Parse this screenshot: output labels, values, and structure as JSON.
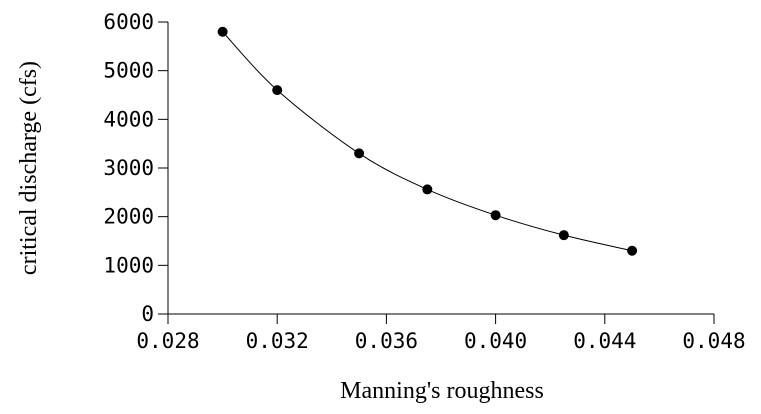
{
  "chart_data": {
    "type": "line",
    "title": "",
    "xlabel": "Manning's roughness",
    "ylabel": "critical discharge (cfs)",
    "xlim": [
      0.028,
      0.048
    ],
    "ylim": [
      0,
      6000
    ],
    "x_ticks": [
      "0.028",
      "0.032",
      "0.036",
      "0.040",
      "0.044",
      "0.048"
    ],
    "y_ticks": [
      "0",
      "1000",
      "2000",
      "3000",
      "4000",
      "5000",
      "6000"
    ],
    "grid": false,
    "legend": "none",
    "markers": "filled-circle",
    "series": [
      {
        "x": [
          0.03,
          0.032,
          0.035,
          0.0375,
          0.04,
          0.0425,
          0.045
        ],
        "y": [
          5800,
          4600,
          3300,
          2560,
          2030,
          1620,
          1300
        ]
      }
    ]
  }
}
